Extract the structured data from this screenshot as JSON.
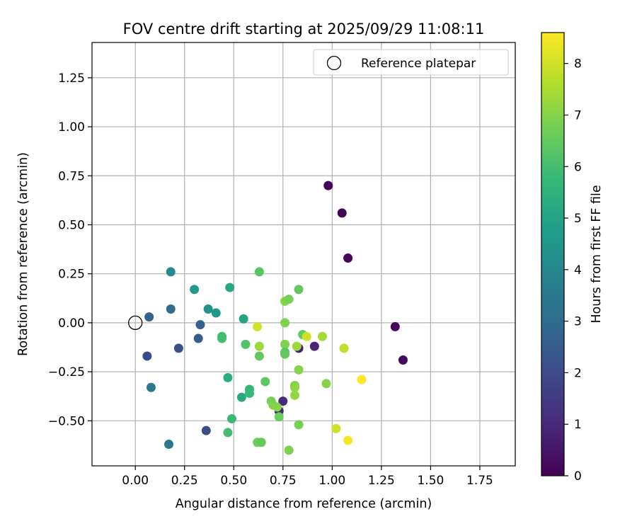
{
  "chart_data": {
    "type": "scatter",
    "title": "FOV centre drift starting at 2025/09/29 11:08:11",
    "xlabel": "Angular distance from reference (arcmin)",
    "ylabel": "Rotation from reference (arcmin)",
    "xlim": [
      -0.22,
      1.93
    ],
    "ylim": [
      -0.73,
      1.43
    ],
    "xticks": [
      0.0,
      0.25,
      0.5,
      0.75,
      1.0,
      1.25,
      1.5,
      1.75
    ],
    "xtick_labels": [
      "0.00",
      "0.25",
      "0.50",
      "0.75",
      "1.00",
      "1.25",
      "1.50",
      "1.75"
    ],
    "yticks": [
      -0.5,
      -0.25,
      0.0,
      0.25,
      0.5,
      0.75,
      1.0,
      1.25
    ],
    "ytick_labels": [
      "−0.50",
      "−0.25",
      "0.00",
      "0.25",
      "0.50",
      "0.75",
      "1.00",
      "1.25"
    ],
    "grid": true,
    "legend": {
      "location": "upper right",
      "entries": [
        "Reference platepar"
      ]
    },
    "reference_point": {
      "x": 0.0,
      "y": 0.0,
      "label": "Reference platepar"
    },
    "colorbar": {
      "label": "Hours from first FF file",
      "range": [
        0,
        8.6
      ],
      "ticks": [
        0,
        1,
        2,
        3,
        4,
        5,
        6,
        7,
        8
      ],
      "tick_labels": [
        "0",
        "1",
        "2",
        "3",
        "4",
        "5",
        "6",
        "7",
        "8"
      ],
      "colormap": "viridis",
      "colors": [
        "#440154",
        "#482878",
        "#3e4989",
        "#31688e",
        "#26828e",
        "#1f9e89",
        "#35b779",
        "#6ece58",
        "#b5de2b",
        "#fde725"
      ]
    },
    "points": [
      {
        "x": 0.98,
        "y": 0.7,
        "c": 0.05
      },
      {
        "x": 1.05,
        "y": 0.56,
        "c": 0.1
      },
      {
        "x": 1.08,
        "y": 0.33,
        "c": 0.15
      },
      {
        "x": 1.32,
        "y": -0.02,
        "c": 0.2
      },
      {
        "x": 1.36,
        "y": -0.19,
        "c": 0.25
      },
      {
        "x": 0.91,
        "y": -0.12,
        "c": 0.9
      },
      {
        "x": 0.83,
        "y": -0.13,
        "c": 0.8
      },
      {
        "x": 0.75,
        "y": -0.4,
        "c": 1.0
      },
      {
        "x": 0.73,
        "y": -0.45,
        "c": 0.9
      },
      {
        "x": 0.06,
        "y": -0.17,
        "c": 2.0
      },
      {
        "x": 0.22,
        "y": -0.13,
        "c": 2.1
      },
      {
        "x": 0.36,
        "y": -0.55,
        "c": 2.1
      },
      {
        "x": 0.32,
        "y": -0.08,
        "c": 2.5
      },
      {
        "x": 0.33,
        "y": -0.01,
        "c": 2.6
      },
      {
        "x": 0.07,
        "y": 0.03,
        "c": 2.8
      },
      {
        "x": 0.18,
        "y": 0.07,
        "c": 3.0
      },
      {
        "x": 0.17,
        "y": -0.62,
        "c": 3.4
      },
      {
        "x": 0.08,
        "y": -0.33,
        "c": 3.5
      },
      {
        "x": 0.18,
        "y": 0.26,
        "c": 4.1
      },
      {
        "x": 0.3,
        "y": 0.17,
        "c": 4.6
      },
      {
        "x": 0.37,
        "y": 0.07,
        "c": 4.4
      },
      {
        "x": 0.41,
        "y": 0.05,
        "c": 4.6
      },
      {
        "x": 0.48,
        "y": 0.18,
        "c": 5.2
      },
      {
        "x": 0.55,
        "y": 0.02,
        "c": 5.0
      },
      {
        "x": 0.47,
        "y": -0.28,
        "c": 5.3
      },
      {
        "x": 0.54,
        "y": -0.38,
        "c": 5.2
      },
      {
        "x": 0.58,
        "y": -0.34,
        "c": 5.6
      },
      {
        "x": 0.58,
        "y": -0.36,
        "c": 5.8
      },
      {
        "x": 0.49,
        "y": -0.49,
        "c": 5.8
      },
      {
        "x": 0.47,
        "y": -0.56,
        "c": 6.0
      },
      {
        "x": 0.44,
        "y": -0.07,
        "c": 5.9
      },
      {
        "x": 0.44,
        "y": -0.08,
        "c": 6.0
      },
      {
        "x": 0.56,
        "y": -0.11,
        "c": 6.2
      },
      {
        "x": 0.63,
        "y": 0.26,
        "c": 6.3
      },
      {
        "x": 0.63,
        "y": -0.17,
        "c": 6.5
      },
      {
        "x": 0.66,
        "y": -0.3,
        "c": 6.4
      },
      {
        "x": 0.62,
        "y": -0.61,
        "c": 6.7
      },
      {
        "x": 0.64,
        "y": -0.61,
        "c": 6.5
      },
      {
        "x": 0.69,
        "y": -0.4,
        "c": 6.8
      },
      {
        "x": 0.7,
        "y": -0.42,
        "c": 6.9
      },
      {
        "x": 0.72,
        "y": -0.43,
        "c": 7.0
      },
      {
        "x": 0.73,
        "y": -0.48,
        "c": 6.6
      },
      {
        "x": 0.76,
        "y": 0.11,
        "c": 7.0
      },
      {
        "x": 0.78,
        "y": 0.12,
        "c": 6.8
      },
      {
        "x": 0.83,
        "y": 0.17,
        "c": 6.5
      },
      {
        "x": 0.76,
        "y": 0.0,
        "c": 6.9
      },
      {
        "x": 0.76,
        "y": -0.11,
        "c": 6.9
      },
      {
        "x": 0.76,
        "y": -0.15,
        "c": 6.3
      },
      {
        "x": 0.76,
        "y": -0.16,
        "c": 6.5
      },
      {
        "x": 0.78,
        "y": -0.65,
        "c": 6.9
      },
      {
        "x": 0.81,
        "y": -0.32,
        "c": 6.8
      },
      {
        "x": 0.81,
        "y": -0.33,
        "c": 7.1
      },
      {
        "x": 0.81,
        "y": -0.37,
        "c": 7.2
      },
      {
        "x": 0.82,
        "y": -0.12,
        "c": 7.3
      },
      {
        "x": 0.83,
        "y": -0.24,
        "c": 7.0
      },
      {
        "x": 0.83,
        "y": -0.52,
        "c": 6.8
      },
      {
        "x": 0.85,
        "y": -0.06,
        "c": 6.5
      },
      {
        "x": 0.87,
        "y": -0.07,
        "c": 8.0
      },
      {
        "x": 0.95,
        "y": -0.07,
        "c": 7.4
      },
      {
        "x": 0.97,
        "y": -0.31,
        "c": 7.0
      },
      {
        "x": 0.62,
        "y": -0.02,
        "c": 8.0
      },
      {
        "x": 0.63,
        "y": -0.12,
        "c": 7.3
      },
      {
        "x": 1.02,
        "y": -0.54,
        "c": 8.0
      },
      {
        "x": 1.06,
        "y": -0.13,
        "c": 7.8
      },
      {
        "x": 1.08,
        "y": -0.6,
        "c": 8.5
      },
      {
        "x": 1.15,
        "y": -0.29,
        "c": 8.6
      }
    ]
  }
}
